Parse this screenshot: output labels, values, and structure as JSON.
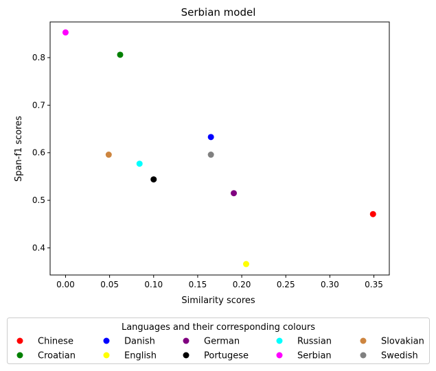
{
  "chart_data": {
    "type": "scatter",
    "title": "Serbian model",
    "xlabel": "Similarity scores",
    "ylabel": "Span-f1 scores",
    "xlim": [
      -0.0175,
      0.3675
    ],
    "ylim": [
      0.343,
      0.875
    ],
    "xticks": [
      0.0,
      0.05,
      0.1,
      0.15,
      0.2,
      0.25,
      0.3,
      0.35
    ],
    "xtick_labels": [
      "0.00",
      "0.05",
      "0.10",
      "0.15",
      "0.20",
      "0.25",
      "0.30",
      "0.35"
    ],
    "yticks": [
      0.4,
      0.5,
      0.6,
      0.7,
      0.8
    ],
    "ytick_labels": [
      "0.4",
      "0.5",
      "0.6",
      "0.7",
      "0.8"
    ],
    "grid": false,
    "legend_title": "Languages and their corresponding colours",
    "legend_placement": "bottom-center",
    "series": [
      {
        "name": "Chinese",
        "color": "#ff0000",
        "x": 0.349,
        "y": 0.471
      },
      {
        "name": "Croatian",
        "color": "#008000",
        "x": 0.062,
        "y": 0.806
      },
      {
        "name": "Danish",
        "color": "#0000ff",
        "x": 0.165,
        "y": 0.633
      },
      {
        "name": "English",
        "color": "#ffff00",
        "x": 0.205,
        "y": 0.366
      },
      {
        "name": "German",
        "color": "#800080",
        "x": 0.191,
        "y": 0.515
      },
      {
        "name": "Portugese",
        "color": "#000000",
        "x": 0.1,
        "y": 0.544
      },
      {
        "name": "Russian",
        "color": "#00ffff",
        "x": 0.084,
        "y": 0.577
      },
      {
        "name": "Serbian",
        "color": "#ff00ff",
        "x": 0.0,
        "y": 0.853
      },
      {
        "name": "Slovakian",
        "color": "#cd853f",
        "x": 0.049,
        "y": 0.596
      },
      {
        "name": "Swedish",
        "color": "#808080",
        "x": 0.165,
        "y": 0.596
      }
    ]
  }
}
